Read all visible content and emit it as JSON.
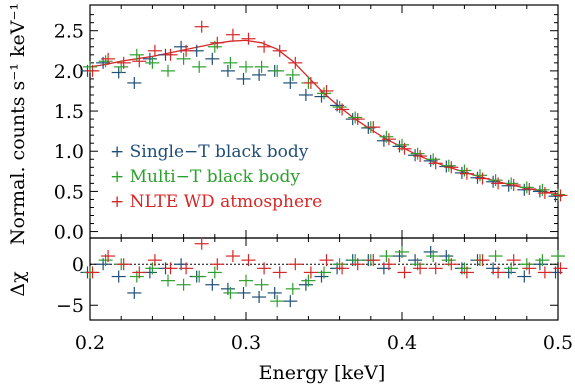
{
  "chart_data": {
    "type": "scatter",
    "xlabel": "Energy [keV]",
    "xlim": [
      0.2,
      0.5
    ],
    "x_ticks": [
      0.2,
      0.3,
      0.4,
      0.5
    ],
    "x_tick_labels": [
      "0.2",
      "0.3",
      "0.4",
      "0.5"
    ],
    "top_panel": {
      "ylabel": "Normal. counts s⁻¹ keV⁻¹",
      "ylim": [
        -0.08,
        2.82
      ],
      "y_ticks": [
        0.0,
        0.5,
        1.0,
        1.5,
        2.0,
        2.5
      ],
      "y_tick_labels": [
        "0.0",
        "0.5",
        "1.0",
        "1.5",
        "2.0",
        "2.5"
      ]
    },
    "bottom_panel": {
      "ylabel": "Δχ",
      "ylim": [
        -6.8,
        3.2
      ],
      "y_ticks": [
        -5,
        0
      ],
      "y_tick_labels": [
        "−5",
        "0"
      ],
      "zero_line": true
    },
    "legend": {
      "position": "lower-left",
      "entries": [
        {
          "marker": "+",
          "label": "Single−T black body",
          "color": "#1f4e79"
        },
        {
          "marker": "+",
          "label": "Multi−T black body",
          "color": "#2ca02c"
        },
        {
          "marker": "+",
          "label": "NLTE WD atmosphere",
          "color": "#d62728"
        }
      ]
    },
    "model": {
      "name": "NLTE WD atmosphere",
      "color": "#d62728",
      "x": [
        0.2,
        0.21,
        0.22,
        0.23,
        0.24,
        0.25,
        0.26,
        0.27,
        0.28,
        0.29,
        0.3,
        0.31,
        0.32,
        0.33,
        0.34,
        0.35,
        0.36,
        0.37,
        0.38,
        0.39,
        0.4,
        0.41,
        0.42,
        0.43,
        0.44,
        0.45,
        0.46,
        0.47,
        0.48,
        0.49,
        0.5
      ],
      "y": [
        2.05,
        2.08,
        2.12,
        2.15,
        2.18,
        2.22,
        2.26,
        2.3,
        2.34,
        2.37,
        2.38,
        2.35,
        2.27,
        2.12,
        1.92,
        1.72,
        1.55,
        1.4,
        1.27,
        1.15,
        1.05,
        0.95,
        0.87,
        0.8,
        0.74,
        0.68,
        0.63,
        0.58,
        0.54,
        0.5,
        0.47
      ]
    },
    "series": [
      {
        "name": "Single−T black body",
        "color": "#1f4e79",
        "x": [
          0.2,
          0.21,
          0.22,
          0.23,
          0.24,
          0.25,
          0.26,
          0.27,
          0.28,
          0.29,
          0.3,
          0.31,
          0.32,
          0.33,
          0.34,
          0.35,
          0.36,
          0.37,
          0.38,
          0.39,
          0.4,
          0.41,
          0.42,
          0.43,
          0.44,
          0.45,
          0.46,
          0.47,
          0.48,
          0.49,
          0.5
        ],
        "y": [
          2.0,
          2.1,
          1.98,
          1.85,
          2.15,
          2.2,
          2.3,
          2.25,
          2.15,
          2.0,
          1.9,
          1.95,
          2.0,
          1.85,
          1.7,
          1.68,
          1.57,
          1.4,
          1.29,
          1.13,
          1.06,
          0.95,
          0.88,
          0.81,
          0.73,
          0.67,
          0.62,
          0.57,
          0.52,
          0.5,
          0.44
        ],
        "residuals": [
          -1.0,
          0.0,
          -1.5,
          -3.5,
          -1.0,
          -0.5,
          0.0,
          -1.5,
          -2.5,
          -3.0,
          -3.5,
          -4.0,
          -3.5,
          -4.5,
          -2.5,
          -1.5,
          -0.5,
          0.5,
          0.5,
          -0.5,
          1.0,
          0.5,
          1.5,
          1.0,
          -0.5,
          0.5,
          -0.5,
          -1.0,
          -1.5,
          0.0,
          -1.0
        ]
      },
      {
        "name": "Multi−T black body",
        "color": "#2ca02c",
        "x": [
          0.2,
          0.21,
          0.22,
          0.23,
          0.24,
          0.25,
          0.26,
          0.27,
          0.28,
          0.29,
          0.3,
          0.31,
          0.32,
          0.33,
          0.34,
          0.35,
          0.36,
          0.37,
          0.38,
          0.39,
          0.4,
          0.41,
          0.42,
          0.43,
          0.44,
          0.45,
          0.46,
          0.47,
          0.48,
          0.49,
          0.5
        ],
        "y": [
          2.05,
          2.12,
          2.05,
          2.2,
          2.1,
          2.0,
          2.15,
          2.05,
          2.3,
          2.1,
          2.05,
          2.05,
          2.0,
          1.95,
          1.85,
          1.72,
          1.55,
          1.42,
          1.3,
          1.18,
          1.08,
          0.97,
          0.9,
          0.82,
          0.76,
          0.7,
          0.64,
          0.6,
          0.55,
          0.52,
          0.46
        ],
        "residuals": [
          -1.0,
          0.5,
          0.0,
          -1.5,
          -0.5,
          -2.0,
          -2.5,
          -1.5,
          -1.0,
          -3.5,
          -2.0,
          -2.5,
          -4.5,
          -3.0,
          -2.0,
          -1.0,
          0.0,
          0.5,
          0.5,
          1.0,
          1.5,
          0.0,
          1.0,
          0.5,
          -0.5,
          0.5,
          1.0,
          -0.5,
          0.0,
          0.5,
          1.0
        ]
      },
      {
        "name": "NLTE WD atmosphere",
        "color": "#d62728",
        "x": [
          0.2,
          0.21,
          0.22,
          0.23,
          0.24,
          0.25,
          0.26,
          0.27,
          0.28,
          0.29,
          0.3,
          0.31,
          0.32,
          0.33,
          0.34,
          0.35,
          0.36,
          0.37,
          0.38,
          0.39,
          0.4,
          0.41,
          0.42,
          0.43,
          0.44,
          0.45,
          0.46,
          0.47,
          0.48,
          0.49,
          0.5
        ],
        "y": [
          2.0,
          2.15,
          2.1,
          2.12,
          2.25,
          2.2,
          2.25,
          2.55,
          2.35,
          2.45,
          2.4,
          2.3,
          2.25,
          2.1,
          1.85,
          1.75,
          1.52,
          1.4,
          1.3,
          1.15,
          1.03,
          0.94,
          0.85,
          0.8,
          0.72,
          0.66,
          0.6,
          0.58,
          0.53,
          0.48,
          0.45
        ],
        "residuals": [
          -1.0,
          1.0,
          0.0,
          -1.0,
          0.5,
          -0.5,
          -0.5,
          2.5,
          0.0,
          1.0,
          0.5,
          -0.5,
          -1.0,
          0.0,
          -1.0,
          0.5,
          -0.5,
          0.0,
          0.5,
          0.0,
          -1.0,
          -0.5,
          -0.5,
          0.0,
          -1.0,
          0.5,
          -1.0,
          0.5,
          -0.5,
          -1.0,
          -0.5
        ]
      }
    ]
  }
}
